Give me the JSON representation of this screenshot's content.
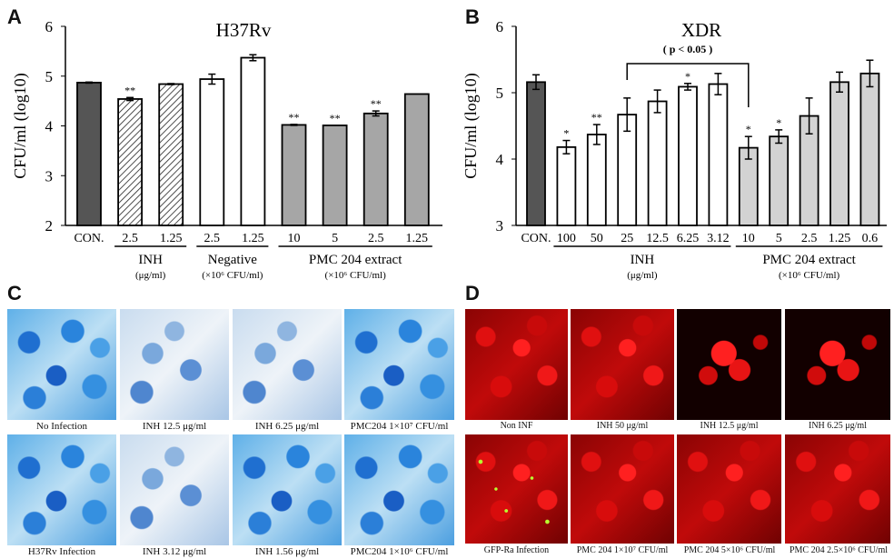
{
  "panels": {
    "a": "A",
    "b": "B",
    "c": "C",
    "d": "D"
  },
  "chart_data": [
    {
      "type": "bar",
      "title": "H37Rv",
      "ylabel": "CFU/ml (log10)",
      "ylim": [
        2,
        6
      ],
      "yticks": [
        "2",
        "3",
        "4",
        "5",
        "6"
      ],
      "categories": [
        "CON.",
        "2.5",
        "1.25",
        "2.5",
        "1.25",
        "10",
        "5",
        "2.5",
        "1.25"
      ],
      "values": [
        4.87,
        4.54,
        4.84,
        4.94,
        5.37,
        4.02,
        4.01,
        4.25,
        4.64
      ],
      "errors": [
        0.01,
        0.03,
        0.01,
        0.1,
        0.06,
        0.01,
        0.0,
        0.05,
        0.0
      ],
      "significance": [
        "",
        "**",
        "",
        "",
        "",
        "**",
        "**",
        "**",
        ""
      ],
      "fills": [
        "#555555",
        "hatch",
        "hatch",
        "#ffffff",
        "#ffffff",
        "#a6a6a6",
        "#a6a6a6",
        "#a6a6a6",
        "#a6a6a6"
      ],
      "groups": [
        {
          "label": "INH",
          "unit": "(μg/ml)",
          "from": 1,
          "to": 2
        },
        {
          "label": "Negative",
          "unit": "(×10⁶ CFU/ml)",
          "from": 3,
          "to": 4
        },
        {
          "label": "PMC 204 extract",
          "unit": "(×10⁶ CFU/ml)",
          "from": 5,
          "to": 8
        }
      ]
    },
    {
      "type": "bar",
      "title": "XDR",
      "ylabel": "CFU/ml (log10)",
      "ylim": [
        3,
        6
      ],
      "yticks": [
        "3",
        "4",
        "5",
        "6"
      ],
      "categories": [
        "CON.",
        "100",
        "50",
        "25",
        "12.5",
        "6.25",
        "3.12",
        "10",
        "5",
        "2.5",
        "1.25",
        "0.6"
      ],
      "values": [
        5.16,
        4.18,
        4.37,
        4.67,
        4.87,
        5.09,
        5.13,
        4.17,
        4.34,
        4.65,
        5.16,
        5.29
      ],
      "errors": [
        0.11,
        0.1,
        0.15,
        0.25,
        0.17,
        0.05,
        0.16,
        0.17,
        0.1,
        0.27,
        0.15,
        0.2
      ],
      "significance": [
        "",
        "*",
        "**",
        "",
        "",
        "*",
        "",
        "*",
        "*",
        "",
        "",
        ""
      ],
      "fills": [
        "#555555",
        "#ffffff",
        "#ffffff",
        "#ffffff",
        "#ffffff",
        "#ffffff",
        "#ffffff",
        "#d3d3d3",
        "#d3d3d3",
        "#d3d3d3",
        "#d3d3d3",
        "#d3d3d3"
      ],
      "groups": [
        {
          "label": "INH",
          "unit": "(μg/ml)",
          "from": 1,
          "to": 6
        },
        {
          "label": "PMC 204 extract",
          "unit": "(×10⁶ CFU/ml)",
          "from": 7,
          "to": 11
        }
      ],
      "bracket": {
        "label": "( p < 0.05 )",
        "from": 3,
        "to": 7
      }
    }
  ],
  "panel_c": {
    "captions": [
      "No Infection",
      "INH  12.5 μg/ml",
      "INH  6.25 μg/ml",
      "PMC204  1×10⁷ CFU/ml",
      "H37Rv Infection",
      "INH  3.12 μg/ml",
      "INH  1.56 μg/ml",
      "PMC204  1×10⁶ CFU/ml"
    ]
  },
  "panel_d": {
    "captions": [
      "Non INF",
      "INH  50 μg/ml",
      "INH  12.5 μg/ml",
      "INH  6.25 μg/ml",
      "GFP-Ra Infection",
      "PMC 204  1×10⁷ CFU/ml",
      "PMC 204  5×10⁶ CFU/ml",
      "PMC 204  2.5×10⁶ CFU/ml"
    ]
  }
}
